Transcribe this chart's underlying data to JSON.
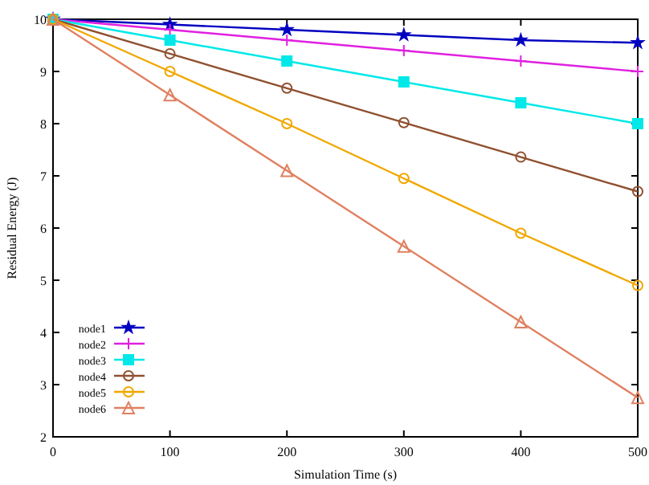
{
  "chart_data": {
    "type": "line",
    "xlabel": "Simulation Time (s)",
    "ylabel": "Residual Energy (J)",
    "x": [
      0,
      100,
      200,
      300,
      400,
      500
    ],
    "xlim": [
      0,
      500
    ],
    "xticks": [
      0,
      100,
      200,
      300,
      400,
      500
    ],
    "ylim": [
      2,
      10
    ],
    "yticks": [
      2,
      3,
      4,
      5,
      6,
      7,
      8,
      9,
      10
    ],
    "grid": false,
    "legend": "bottom left",
    "series": [
      {
        "name": "node1",
        "color": "#0000c0",
        "marker": "star",
        "values": [
          10,
          9.9,
          9.8,
          9.7,
          9.6,
          9.55
        ]
      },
      {
        "name": "node2",
        "color": "#e020e0",
        "marker": "cross",
        "values": [
          10,
          9.8,
          9.6,
          9.4,
          9.2,
          9.0
        ]
      },
      {
        "name": "node3",
        "color": "#00e8e8",
        "marker": "square",
        "values": [
          10,
          9.6,
          9.2,
          8.8,
          8.4,
          8.0
        ]
      },
      {
        "name": "node4",
        "color": "#905030",
        "marker": "circle",
        "values": [
          10,
          9.34,
          8.68,
          8.02,
          7.36,
          6.7
        ]
      },
      {
        "name": "node5",
        "color": "#f0a800",
        "marker": "circle",
        "values": [
          10,
          9.0,
          8.0,
          6.95,
          5.9,
          4.9
        ]
      },
      {
        "name": "node6",
        "color": "#e08060",
        "marker": "triangle",
        "values": [
          10,
          8.55,
          7.1,
          5.65,
          4.2,
          2.75
        ]
      }
    ]
  }
}
